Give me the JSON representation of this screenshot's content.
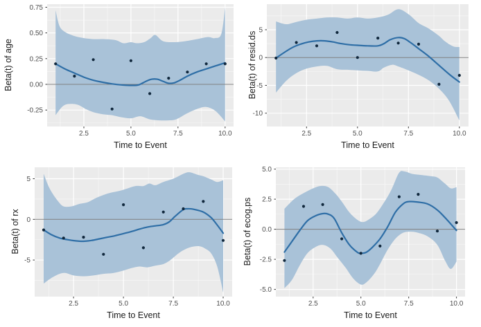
{
  "style": {
    "background": "#ffffff",
    "panel_bg": "#ebebeb",
    "grid_major": "#ffffff",
    "grid_minor": "#ffffff",
    "ribbon_fill": "#a9c2d8",
    "smooth_line": "#2e6ea6",
    "point_color": "#10273c",
    "ref_line": "#808080",
    "tick_mark": "#333333",
    "tick_label": "#4d4d4d",
    "axis_title": "#1a1a1a"
  },
  "chart_data": [
    {
      "type": "scatter",
      "name": "age",
      "title": "",
      "xlabel": "Time to Event",
      "ylabel": "Beta(t) of age",
      "legend": "none",
      "grid": true,
      "xlim": [
        0.55,
        10.45
      ],
      "ylim": [
        -0.41,
        0.78
      ],
      "xticks": [
        2.5,
        5.0,
        7.5,
        10.0
      ],
      "xtick_labels": [
        "2.5",
        "5.0",
        "7.5",
        "10.0"
      ],
      "yticks": [
        -0.25,
        0.0,
        0.25,
        0.5,
        0.75
      ],
      "ytick_labels": [
        "-0.25",
        "0.00",
        "0.25",
        "0.50",
        "0.75"
      ],
      "ref_line_y": 0,
      "x": [
        1,
        2,
        3,
        4,
        5,
        6,
        7,
        8,
        9,
        10
      ],
      "points": [
        0.2,
        0.08,
        0.24,
        -0.24,
        0.23,
        -0.09,
        0.06,
        0.12,
        0.2,
        0.2
      ],
      "smooth": [
        [
          1,
          0.2
        ],
        [
          1.5,
          0.15
        ],
        [
          2,
          0.11
        ],
        [
          2.5,
          0.07
        ],
        [
          3,
          0.04
        ],
        [
          3.5,
          0.02
        ],
        [
          4,
          0.005
        ],
        [
          4.5,
          -0.005
        ],
        [
          5,
          -0.01
        ],
        [
          5.4,
          -0.005
        ],
        [
          5.8,
          0.03
        ],
        [
          6.1,
          0.05
        ],
        [
          6.4,
          0.05
        ],
        [
          6.7,
          0.03
        ],
        [
          7,
          0.01
        ],
        [
          7.3,
          0.015
        ],
        [
          7.6,
          0.04
        ],
        [
          8,
          0.08
        ],
        [
          8.5,
          0.12
        ],
        [
          9,
          0.15
        ],
        [
          9.5,
          0.18
        ],
        [
          10,
          0.21
        ]
      ],
      "ci_upper": [
        [
          1,
          0.72
        ],
        [
          1.2,
          0.57
        ],
        [
          1.5,
          0.51
        ],
        [
          2,
          0.47
        ],
        [
          2.5,
          0.45
        ],
        [
          3,
          0.44
        ],
        [
          3.6,
          0.44
        ],
        [
          4.2,
          0.43
        ],
        [
          4.6,
          0.4
        ],
        [
          5,
          0.41
        ],
        [
          5.3,
          0.4
        ],
        [
          5.7,
          0.41
        ],
        [
          6.05,
          0.45
        ],
        [
          6.3,
          0.48
        ],
        [
          6.7,
          0.42
        ],
        [
          7.3,
          0.41
        ],
        [
          7.9,
          0.42
        ],
        [
          8.5,
          0.44
        ],
        [
          9.1,
          0.46
        ],
        [
          9.45,
          0.45
        ],
        [
          9.8,
          0.49
        ],
        [
          10,
          0.75
        ]
      ],
      "ci_lower": [
        [
          1,
          -0.3
        ],
        [
          1.4,
          -0.21
        ],
        [
          1.8,
          -0.19
        ],
        [
          2.2,
          -0.2
        ],
        [
          2.6,
          -0.24
        ],
        [
          3,
          -0.27
        ],
        [
          3.5,
          -0.29
        ],
        [
          4,
          -0.3
        ],
        [
          4.5,
          -0.32
        ],
        [
          5,
          -0.33
        ],
        [
          5.5,
          -0.31
        ],
        [
          6,
          -0.34
        ],
        [
          6.5,
          -0.35
        ],
        [
          7,
          -0.35
        ],
        [
          7.4,
          -0.34
        ],
        [
          8,
          -0.28
        ],
        [
          8.5,
          -0.24
        ],
        [
          9,
          -0.22
        ],
        [
          9.5,
          -0.26
        ],
        [
          10,
          -0.36
        ]
      ]
    },
    {
      "type": "scatter",
      "name": "resid.ds",
      "title": "",
      "xlabel": "Time to Event",
      "ylabel": "Beta(t) of resid.ds",
      "legend": "none",
      "grid": true,
      "xlim": [
        0.55,
        10.45
      ],
      "ylim": [
        -12.4,
        9.6
      ],
      "xticks": [
        2.5,
        5.0,
        7.5,
        10.0
      ],
      "xtick_labels": [
        "2.5",
        "5.0",
        "7.5",
        "10.0"
      ],
      "yticks": [
        -10,
        -5,
        0,
        5
      ],
      "ytick_labels": [
        "-10",
        "-5",
        "0",
        "5"
      ],
      "ref_line_y": 0,
      "x": [
        1,
        2,
        3,
        4,
        5,
        6,
        7,
        8,
        9,
        10
      ],
      "points": [
        -0.1,
        2.7,
        2.1,
        4.5,
        0.0,
        3.5,
        2.6,
        2.4,
        -4.8,
        -3.2
      ],
      "smooth": [
        [
          1,
          -0.1
        ],
        [
          1.4,
          0.9
        ],
        [
          1.8,
          1.8
        ],
        [
          2.2,
          2.4
        ],
        [
          2.6,
          2.8
        ],
        [
          3,
          3.0
        ],
        [
          3.4,
          3.0
        ],
        [
          3.8,
          2.8
        ],
        [
          4.2,
          2.5
        ],
        [
          4.6,
          2.3
        ],
        [
          5,
          2.2
        ],
        [
          5.5,
          2.1
        ],
        [
          6,
          2.1
        ],
        [
          6.3,
          2.5
        ],
        [
          6.6,
          3.2
        ],
        [
          7,
          3.6
        ],
        [
          7.3,
          3.4
        ],
        [
          7.6,
          2.7
        ],
        [
          8,
          1.6
        ],
        [
          8.5,
          0.2
        ],
        [
          9,
          -1.4
        ],
        [
          9.5,
          -3.0
        ],
        [
          10,
          -4.4
        ]
      ],
      "ci_upper": [
        [
          1,
          6.5
        ],
        [
          1.5,
          6.0
        ],
        [
          2,
          6.4
        ],
        [
          2.5,
          6.8
        ],
        [
          3,
          7.0
        ],
        [
          3.5,
          7.2
        ],
        [
          4,
          7.2
        ],
        [
          4.5,
          7.0
        ],
        [
          5,
          7.2
        ],
        [
          5.5,
          7.0
        ],
        [
          6,
          7.2
        ],
        [
          6.5,
          7.7
        ],
        [
          7,
          8.7
        ],
        [
          7.5,
          7.8
        ],
        [
          8,
          6.2
        ],
        [
          8.5,
          5.2
        ],
        [
          9,
          3.9
        ],
        [
          9.3,
          2.9
        ],
        [
          9.7,
          2.0
        ],
        [
          10,
          1.9
        ]
      ],
      "ci_lower": [
        [
          1,
          -6.3
        ],
        [
          1.5,
          -4.2
        ],
        [
          2,
          -2.8
        ],
        [
          2.5,
          -2.0
        ],
        [
          3,
          -1.6
        ],
        [
          3.5,
          -1.5
        ],
        [
          4,
          -2.1
        ],
        [
          4.5,
          -2.2
        ],
        [
          5,
          -2.3
        ],
        [
          5.5,
          -2.4
        ],
        [
          6,
          -2.5
        ],
        [
          6.3,
          -1.8
        ],
        [
          6.7,
          -1.3
        ],
        [
          7,
          -1.6
        ],
        [
          7.5,
          -2.3
        ],
        [
          8,
          -3.1
        ],
        [
          8.5,
          -4.1
        ],
        [
          9,
          -5.6
        ],
        [
          9.5,
          -7.8
        ],
        [
          10,
          -11.3
        ]
      ]
    },
    {
      "type": "scatter",
      "name": "rx",
      "title": "",
      "xlabel": "Time to Event",
      "ylabel": "Beta(t) of rx",
      "legend": "none",
      "grid": true,
      "xlim": [
        0.55,
        10.45
      ],
      "ylim": [
        -9.5,
        6.4
      ],
      "xticks": [
        2.5,
        5.0,
        7.5,
        10.0
      ],
      "xtick_labels": [
        "2.5",
        "5.0",
        "7.5",
        "10.0"
      ],
      "yticks": [
        -5,
        0,
        5
      ],
      "ytick_labels": [
        "-5",
        "0",
        "5"
      ],
      "ref_line_y": 0,
      "x": [
        1,
        2,
        3,
        4,
        5,
        6,
        7,
        8,
        9,
        10
      ],
      "points": [
        -1.3,
        -2.3,
        -2.2,
        -4.3,
        1.8,
        -3.5,
        0.9,
        1.3,
        2.2,
        -2.6
      ],
      "smooth": [
        [
          1,
          -1.3
        ],
        [
          1.4,
          -1.9
        ],
        [
          1.8,
          -2.3
        ],
        [
          2.2,
          -2.5
        ],
        [
          2.6,
          -2.65
        ],
        [
          3,
          -2.7
        ],
        [
          3.4,
          -2.6
        ],
        [
          3.8,
          -2.4
        ],
        [
          4.2,
          -2.2
        ],
        [
          4.6,
          -2.0
        ],
        [
          5,
          -1.75
        ],
        [
          5.4,
          -1.5
        ],
        [
          5.8,
          -1.2
        ],
        [
          6.2,
          -0.95
        ],
        [
          6.6,
          -0.8
        ],
        [
          7,
          -0.65
        ],
        [
          7.3,
          -0.3
        ],
        [
          7.6,
          0.4
        ],
        [
          8,
          1.2
        ],
        [
          8.2,
          1.3
        ],
        [
          8.5,
          1.25
        ],
        [
          9,
          0.9
        ],
        [
          9.4,
          0.2
        ],
        [
          9.7,
          -0.7
        ],
        [
          10,
          -1.7
        ]
      ],
      "ci_upper": [
        [
          1,
          5.6
        ],
        [
          1.3,
          3.8
        ],
        [
          1.7,
          2.3
        ],
        [
          2,
          1.6
        ],
        [
          2.4,
          1.6
        ],
        [
          2.8,
          1.9
        ],
        [
          3.2,
          2.1
        ],
        [
          3.6,
          2.6
        ],
        [
          4,
          3.0
        ],
        [
          4.4,
          3.3
        ],
        [
          4.8,
          3.5
        ],
        [
          5.2,
          3.8
        ],
        [
          5.6,
          4.1
        ],
        [
          6,
          4.1
        ],
        [
          6.3,
          4.4
        ],
        [
          6.6,
          4.2
        ],
        [
          7,
          4.6
        ],
        [
          7.5,
          5.0
        ],
        [
          8,
          5.6
        ],
        [
          8.3,
          5.8
        ],
        [
          8.7,
          5.5
        ],
        [
          9,
          5.3
        ],
        [
          9.4,
          4.9
        ],
        [
          9.7,
          4.6
        ],
        [
          10,
          4.8
        ]
      ],
      "ci_lower": [
        [
          1,
          -7.9
        ],
        [
          1.4,
          -7.2
        ],
        [
          1.8,
          -6.7
        ],
        [
          2.1,
          -6.6
        ],
        [
          2.5,
          -6.9
        ],
        [
          3,
          -7.0
        ],
        [
          3.5,
          -6.9
        ],
        [
          4,
          -6.7
        ],
        [
          4.5,
          -6.6
        ],
        [
          5,
          -6.3
        ],
        [
          5.4,
          -6.0
        ],
        [
          5.8,
          -5.8
        ],
        [
          6.2,
          -5.9
        ],
        [
          6.6,
          -5.7
        ],
        [
          7,
          -5.5
        ],
        [
          7.3,
          -5.1
        ],
        [
          7.7,
          -4.3
        ],
        [
          8,
          -3.8
        ],
        [
          8.4,
          -3.4
        ],
        [
          8.8,
          -3.3
        ],
        [
          9.1,
          -3.6
        ],
        [
          9.4,
          -4.2
        ],
        [
          9.7,
          -5.8
        ],
        [
          10,
          -9.0
        ]
      ]
    },
    {
      "type": "scatter",
      "name": "ecog.ps",
      "title": "",
      "xlabel": "Time to Event",
      "ylabel": "Beta(t) of ecog.ps",
      "legend": "none",
      "grid": true,
      "xlim": [
        0.55,
        10.45
      ],
      "ylim": [
        -5.6,
        5.15
      ],
      "xticks": [
        2.5,
        5.0,
        7.5,
        10.0
      ],
      "xtick_labels": [
        "2.5",
        "5.0",
        "7.5",
        "10.0"
      ],
      "yticks": [
        -5,
        -2.5,
        0,
        2.5,
        5
      ],
      "ytick_labels": [
        "-5.0",
        "-2.5",
        "0.0",
        "2.5",
        "5.0"
      ],
      "ref_line_y": 0,
      "x": [
        1,
        2,
        3,
        4,
        5,
        6,
        7,
        8,
        9,
        10
      ],
      "points": [
        -2.6,
        1.9,
        2.05,
        -0.8,
        -2.0,
        -1.4,
        2.7,
        2.9,
        -0.15,
        0.55
      ],
      "smooth": [
        [
          1,
          -1.9
        ],
        [
          1.4,
          -1.0
        ],
        [
          1.8,
          -0.1
        ],
        [
          2.2,
          0.7
        ],
        [
          2.6,
          1.1
        ],
        [
          3,
          1.3
        ],
        [
          3.3,
          1.25
        ],
        [
          3.6,
          0.9
        ],
        [
          4,
          -0.3
        ],
        [
          4.4,
          -1.3
        ],
        [
          4.8,
          -1.9
        ],
        [
          5,
          -2.0
        ],
        [
          5.3,
          -1.9
        ],
        [
          5.6,
          -1.5
        ],
        [
          6,
          -0.8
        ],
        [
          6.4,
          0.2
        ],
        [
          6.8,
          1.4
        ],
        [
          7.2,
          2.1
        ],
        [
          7.5,
          2.3
        ],
        [
          8,
          2.25
        ],
        [
          8.5,
          2.1
        ],
        [
          9,
          1.6
        ],
        [
          9.5,
          0.8
        ],
        [
          10,
          -0.1
        ]
      ],
      "ci_upper": [
        [
          1,
          1.7
        ],
        [
          1.5,
          2.5
        ],
        [
          2,
          3.0
        ],
        [
          2.5,
          3.4
        ],
        [
          2.9,
          3.6
        ],
        [
          3.3,
          3.5
        ],
        [
          3.7,
          2.9
        ],
        [
          4,
          2.3
        ],
        [
          4.4,
          1.4
        ],
        [
          4.8,
          0.8
        ],
        [
          5.1,
          0.6
        ],
        [
          5.4,
          0.8
        ],
        [
          5.8,
          1.3
        ],
        [
          6.2,
          2.2
        ],
        [
          6.6,
          3.3
        ],
        [
          7,
          4.7
        ],
        [
          7.3,
          4.8
        ],
        [
          7.7,
          4.6
        ],
        [
          8.2,
          4.5
        ],
        [
          8.7,
          4.4
        ],
        [
          9,
          4.3
        ],
        [
          9.4,
          3.8
        ],
        [
          9.7,
          3.4
        ],
        [
          10,
          3.5
        ]
      ],
      "ci_lower": [
        [
          1,
          -4.9
        ],
        [
          1.4,
          -4.2
        ],
        [
          1.8,
          -3.0
        ],
        [
          2.2,
          -2.0
        ],
        [
          2.6,
          -1.5
        ],
        [
          3,
          -1.3
        ],
        [
          3.4,
          -1.6
        ],
        [
          3.8,
          -2.4
        ],
        [
          4.2,
          -3.2
        ],
        [
          4.6,
          -4.1
        ],
        [
          5,
          -4.6
        ],
        [
          5.3,
          -4.4
        ],
        [
          5.7,
          -3.7
        ],
        [
          6,
          -2.9
        ],
        [
          6.4,
          -1.7
        ],
        [
          6.8,
          -0.8
        ],
        [
          7.2,
          -0.3
        ],
        [
          7.6,
          -0.2
        ],
        [
          8,
          -0.3
        ],
        [
          8.5,
          -0.6
        ],
        [
          9,
          -1.3
        ],
        [
          9.4,
          -2.6
        ],
        [
          9.7,
          -3.3
        ],
        [
          10,
          -2.7
        ]
      ]
    }
  ]
}
